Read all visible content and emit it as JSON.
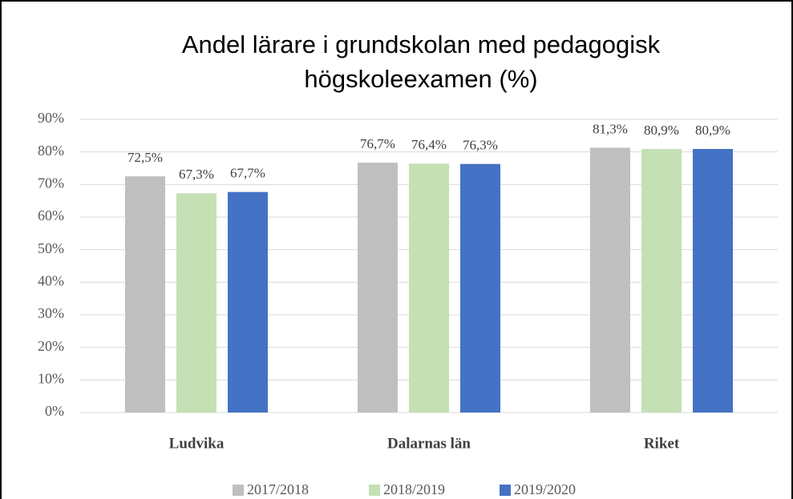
{
  "chart_data": {
    "type": "bar",
    "title": [
      "Andel lärare i grundskolan med pedagogisk",
      "högskoleexamen (%)"
    ],
    "categories": [
      "Ludvika",
      "Dalarnas län",
      "Riket"
    ],
    "series": [
      {
        "name": "2017/2018",
        "color": "#bfbfbf",
        "values": [
          72.5,
          76.7,
          81.3
        ],
        "value_labels": [
          "72,5%",
          "76,7%",
          "81,3%"
        ]
      },
      {
        "name": "2018/2019",
        "color": "#c5e0b4",
        "values": [
          67.3,
          76.4,
          80.9
        ],
        "value_labels": [
          "67,3%",
          "76,4%",
          "80,9%"
        ]
      },
      {
        "name": "2019/2020",
        "color": "#4472c4",
        "values": [
          67.7,
          76.3,
          80.9
        ],
        "value_labels": [
          "67,7%",
          "76,3%",
          "80,9%"
        ]
      }
    ],
    "ylim": [
      0,
      90
    ],
    "yticks": [
      {
        "value": 0,
        "label": "0%"
      },
      {
        "value": 10,
        "label": "10%"
      },
      {
        "value": 20,
        "label": "20%"
      },
      {
        "value": 30,
        "label": "30%"
      },
      {
        "value": 40,
        "label": "40%"
      },
      {
        "value": 50,
        "label": "50%"
      },
      {
        "value": 60,
        "label": "60%"
      },
      {
        "value": 70,
        "label": "70%"
      },
      {
        "value": 80,
        "label": "80%"
      },
      {
        "value": 90,
        "label": "90%"
      }
    ],
    "grid": true,
    "legend": "bottom"
  }
}
